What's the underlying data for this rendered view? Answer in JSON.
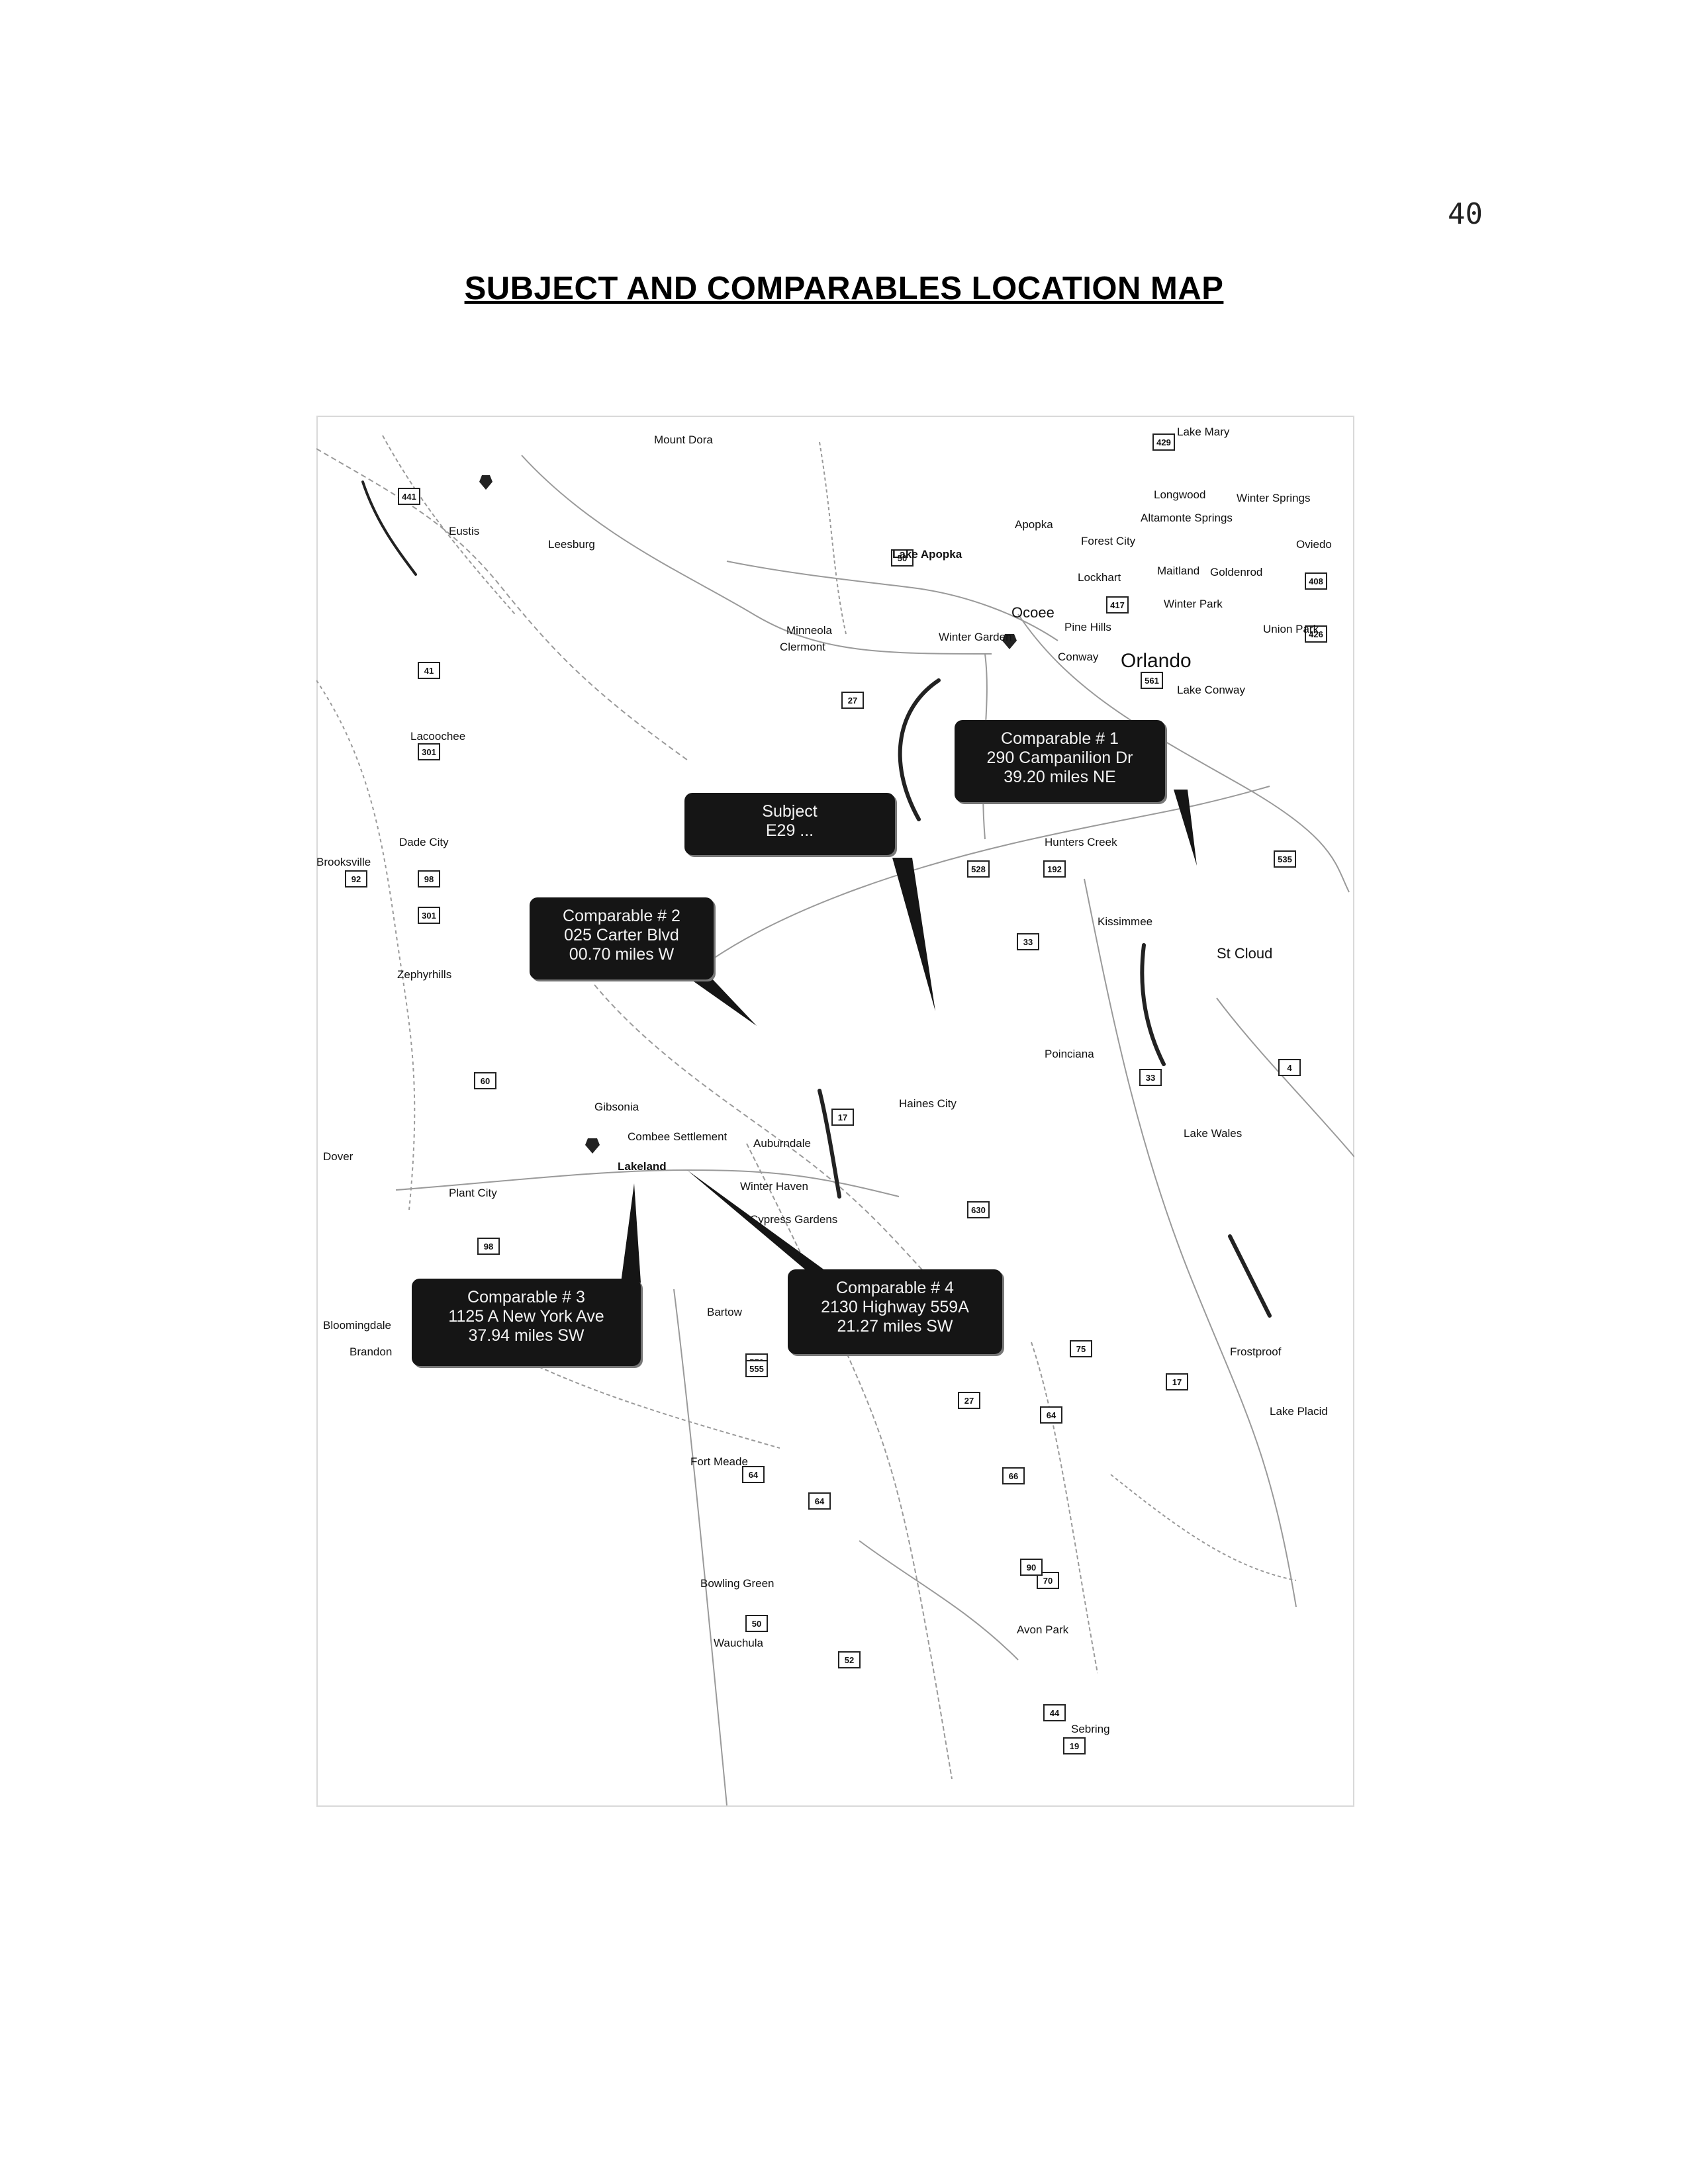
{
  "page_number": "40",
  "title": "SUBJECT AND COMPARABLES LOCATION MAP",
  "map": {
    "callouts": [
      {
        "id": "comparable-1",
        "line1": "Comparable # 1",
        "line2": "290 Campanilion Dr",
        "line3": "39.20 miles NE"
      },
      {
        "id": "subject",
        "line1": "Subject",
        "line2": "E29 ...",
        "line3": ""
      },
      {
        "id": "comparable-2",
        "line1": "Comparable # 2",
        "line2": "025 Carter Blvd",
        "line3": "00.70 miles W"
      },
      {
        "id": "comparable-3",
        "line1": "Comparable # 3",
        "line2": "1125 A New York Ave",
        "line3": "37.94 miles SW"
      },
      {
        "id": "comparable-4",
        "line1": "Comparable # 4",
        "line2": "2130 Highway 559A",
        "line3": "21.27 miles SW"
      }
    ],
    "places": [
      {
        "label": "Orlando",
        "kind": "city"
      },
      {
        "label": "Lakeland",
        "kind": "bold"
      },
      {
        "label": "Winter Springs",
        "kind": "normal"
      },
      {
        "label": "Oviedo",
        "kind": "normal"
      },
      {
        "label": "Longwood",
        "kind": "normal"
      },
      {
        "label": "Altamonte Springs",
        "kind": "normal"
      },
      {
        "label": "Apopka",
        "kind": "normal"
      },
      {
        "label": "Forest City",
        "kind": "normal"
      },
      {
        "label": "Maitland",
        "kind": "normal"
      },
      {
        "label": "Goldenrod",
        "kind": "normal"
      },
      {
        "label": "Lockhart",
        "kind": "normal"
      },
      {
        "label": "Winter Park",
        "kind": "normal"
      },
      {
        "label": "Ocoee",
        "kind": "normal"
      },
      {
        "label": "Pine Hills",
        "kind": "normal"
      },
      {
        "label": "Union Park",
        "kind": "normal"
      },
      {
        "label": "Winter Garden",
        "kind": "normal"
      },
      {
        "label": "Clermont",
        "kind": "normal"
      },
      {
        "label": "Minneola",
        "kind": "normal"
      },
      {
        "label": "Lake Apopka",
        "kind": "bold"
      },
      {
        "label": "Lake Mary",
        "kind": "normal"
      },
      {
        "label": "Conway",
        "kind": "normal"
      },
      {
        "label": "Lake Conway",
        "kind": "normal"
      },
      {
        "label": "Hunters Creek",
        "kind": "normal"
      },
      {
        "label": "Kissimmee",
        "kind": "normal"
      },
      {
        "label": "St Cloud",
        "kind": "normal"
      },
      {
        "label": "Poinciana",
        "kind": "normal"
      },
      {
        "label": "Haines City",
        "kind": "normal"
      },
      {
        "label": "Lake Wales",
        "kind": "normal"
      },
      {
        "label": "Winter Haven",
        "kind": "normal"
      },
      {
        "label": "Cypress Gardens",
        "kind": "normal"
      },
      {
        "label": "Auburndale",
        "kind": "normal"
      },
      {
        "label": "Combee Settlement",
        "kind": "normal"
      },
      {
        "label": "Gibsonia",
        "kind": "normal"
      },
      {
        "label": "Plant City",
        "kind": "normal"
      },
      {
        "label": "Dover",
        "kind": "normal"
      },
      {
        "label": "Zephyrhills",
        "kind": "normal"
      },
      {
        "label": "Dade City",
        "kind": "normal"
      },
      {
        "label": "Lacoochee",
        "kind": "normal"
      },
      {
        "label": "Brooksville",
        "kind": "normal"
      },
      {
        "label": "Leesburg",
        "kind": "normal"
      },
      {
        "label": "Eustis",
        "kind": "normal"
      },
      {
        "label": "Mount Dora",
        "kind": "normal"
      },
      {
        "label": "Bartow",
        "kind": "normal"
      },
      {
        "label": "Fort Meade",
        "kind": "normal"
      },
      {
        "label": "Bowling Green",
        "kind": "normal"
      },
      {
        "label": "Wauchula",
        "kind": "normal"
      },
      {
        "label": "Avon Park",
        "kind": "normal"
      },
      {
        "label": "Sebring",
        "kind": "normal"
      },
      {
        "label": "Frostproof",
        "kind": "normal"
      },
      {
        "label": "Lake Placid",
        "kind": "normal"
      },
      {
        "label": "Bloomingdale",
        "kind": "normal"
      },
      {
        "label": "Brandon",
        "kind": "normal"
      }
    ],
    "shields": [
      "441",
      "429",
      "408",
      "417",
      "426",
      "50",
      "27",
      "192",
      "535",
      "528",
      "33",
      "301",
      "98",
      "60",
      "17",
      "630",
      "570",
      "555",
      "98",
      "27",
      "17",
      "64",
      "66",
      "70",
      "50",
      "44",
      "19",
      "52",
      "75",
      "4",
      "92",
      "41",
      "561",
      "301",
      "64",
      "90",
      "33",
      "64"
    ]
  }
}
